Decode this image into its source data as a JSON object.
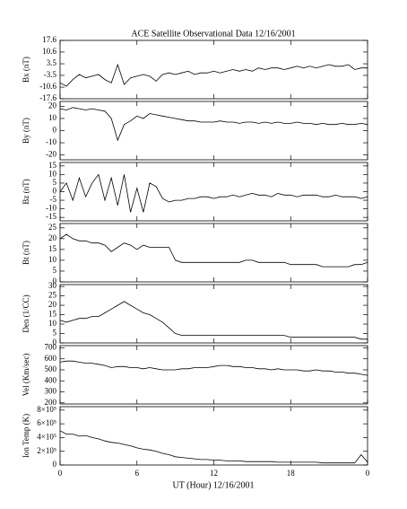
{
  "title": "ACE Satellite Observational Data   12/16/2001",
  "xlabel": "UT (Hour)  12/16/2001",
  "xlim": [
    0,
    24
  ],
  "xticks": [
    0,
    6,
    12,
    18,
    {
      "value": 24,
      "label": "0"
    }
  ],
  "chart_data": [
    {
      "type": "line",
      "ylabel": "Bx (nT)",
      "color": "#000000",
      "x": [
        0,
        0.5,
        1,
        1.5,
        2,
        2.5,
        3,
        3.5,
        4,
        4.5,
        5,
        5.5,
        6,
        6.5,
        7,
        7.5,
        8,
        8.5,
        9,
        9.5,
        10,
        10.5,
        11,
        11.5,
        12,
        12.5,
        13,
        13.5,
        14,
        14.5,
        15,
        15.5,
        16,
        16.5,
        17,
        17.5,
        18,
        18.5,
        19,
        19.5,
        20,
        20.5,
        21,
        21.5,
        22,
        22.5,
        23,
        23.5,
        24
      ],
      "values": [
        -8,
        -10,
        -6,
        -3,
        -5,
        -4,
        -3,
        -6,
        -8,
        3,
        -9,
        -5,
        -4,
        -3,
        -4,
        -7,
        -3,
        -2,
        -3,
        -2,
        -1,
        -3,
        -2,
        -2,
        -1,
        -2,
        -1,
        0,
        -1,
        0,
        -1,
        1,
        0,
        1,
        1,
        0,
        1,
        2,
        1,
        2,
        1,
        2,
        3,
        2,
        2,
        3,
        0,
        1,
        1
      ],
      "ylim": [
        -17.6,
        17.6
      ],
      "yticks": [
        17.6,
        10.6,
        3.5,
        -3.5,
        -10.6,
        -17.6
      ]
    },
    {
      "type": "line",
      "ylabel": "By (nT)",
      "color": "#000000",
      "x": [
        0,
        0.5,
        1,
        1.5,
        2,
        2.5,
        3,
        3.5,
        4,
        4.5,
        5,
        5.5,
        6,
        6.5,
        7,
        7.5,
        8,
        8.5,
        9,
        9.5,
        10,
        10.5,
        11,
        11.5,
        12,
        12.5,
        13,
        13.5,
        14,
        14.5,
        15,
        15.5,
        16,
        16.5,
        17,
        17.5,
        18,
        18.5,
        19,
        19.5,
        20,
        20.5,
        21,
        21.5,
        22,
        22.5,
        23,
        23.5,
        24
      ],
      "values": [
        18,
        17,
        19,
        18,
        17,
        18,
        17,
        16,
        10,
        -8,
        5,
        8,
        12,
        10,
        14,
        13,
        12,
        11,
        10,
        9,
        8,
        8,
        7,
        7,
        7,
        8,
        7,
        7,
        6,
        7,
        7,
        6,
        7,
        6,
        7,
        6,
        6,
        7,
        6,
        6,
        5,
        6,
        5,
        5,
        6,
        5,
        5,
        6,
        5
      ],
      "ylim": [
        -24,
        24
      ],
      "yticks": [
        20,
        10,
        0,
        -10,
        -20
      ]
    },
    {
      "type": "line",
      "ylabel": "Bz (nT)",
      "color": "#000000",
      "x": [
        0,
        0.5,
        1,
        1.5,
        2,
        2.5,
        3,
        3.5,
        4,
        4.5,
        5,
        5.5,
        6,
        6.5,
        7,
        7.5,
        8,
        8.5,
        9,
        9.5,
        10,
        10.5,
        11,
        11.5,
        12,
        12.5,
        13,
        13.5,
        14,
        14.5,
        15,
        15.5,
        16,
        16.5,
        17,
        17.5,
        18,
        18.5,
        19,
        19.5,
        20,
        20.5,
        21,
        21.5,
        22,
        22.5,
        23,
        23.5,
        24
      ],
      "values": [
        0,
        5,
        -5,
        8,
        -3,
        5,
        10,
        -5,
        8,
        -8,
        10,
        -12,
        2,
        -12,
        5,
        3,
        -4,
        -6,
        -5,
        -5,
        -4,
        -4,
        -3,
        -3,
        -4,
        -3,
        -3,
        -2,
        -3,
        -2,
        -1,
        -2,
        -2,
        -3,
        -1,
        -2,
        -2,
        -3,
        -2,
        -2,
        -2,
        -3,
        -3,
        -2,
        -3,
        -3,
        -3,
        -4,
        -3
      ],
      "ylim": [
        -17,
        17
      ],
      "yticks": [
        15,
        10,
        5,
        0,
        -5,
        -10,
        -15
      ]
    },
    {
      "type": "line",
      "ylabel": "Bt (nT)",
      "color": "#000000",
      "x": [
        0,
        0.5,
        1,
        1.5,
        2,
        2.5,
        3,
        3.5,
        4,
        4.5,
        5,
        5.5,
        6,
        6.5,
        7,
        7.5,
        8,
        8.5,
        9,
        9.5,
        10,
        10.5,
        11,
        11.5,
        12,
        12.5,
        13,
        13.5,
        14,
        14.5,
        15,
        15.5,
        16,
        16.5,
        17,
        17.5,
        18,
        18.5,
        19,
        19.5,
        20,
        20.5,
        21,
        21.5,
        22,
        22.5,
        23,
        23.5,
        24
      ],
      "values": [
        20,
        22,
        20,
        19,
        19,
        18,
        18,
        17,
        14,
        16,
        18,
        17,
        15,
        17,
        16,
        16,
        16,
        16,
        10,
        9,
        9,
        9,
        9,
        9,
        9,
        9,
        9,
        9,
        9,
        10,
        10,
        9,
        9,
        9,
        9,
        9,
        8,
        8,
        8,
        8,
        8,
        7,
        7,
        7,
        7,
        7,
        8,
        8,
        9
      ],
      "ylim": [
        0,
        27
      ],
      "yticks": [
        25,
        20,
        15,
        10,
        5,
        0
      ]
    },
    {
      "type": "line",
      "ylabel": "Den (1/CC)",
      "color": "#000000",
      "x": [
        0,
        0.5,
        1,
        1.5,
        2,
        2.5,
        3,
        3.5,
        4,
        4.5,
        5,
        5.5,
        6,
        6.5,
        7,
        7.5,
        8,
        8.5,
        9,
        9.5,
        10,
        10.5,
        11,
        11.5,
        12,
        12.5,
        13,
        13.5,
        14,
        14.5,
        15,
        15.5,
        16,
        16.5,
        17,
        17.5,
        18,
        18.5,
        19,
        19.5,
        20,
        20.5,
        21,
        21.5,
        22,
        22.5,
        23,
        23.5,
        24
      ],
      "values": [
        12,
        11,
        12,
        13,
        13,
        14,
        14,
        16,
        18,
        20,
        22,
        20,
        18,
        16,
        15,
        13,
        11,
        8,
        5,
        4,
        4,
        4,
        4,
        4,
        4,
        4,
        4,
        4,
        4,
        4,
        4,
        4,
        4,
        4,
        4,
        4,
        3,
        3,
        3,
        3,
        3,
        3,
        3,
        3,
        3,
        3,
        3,
        2,
        2
      ],
      "ylim": [
        0,
        31
      ],
      "yticks": [
        30,
        25,
        20,
        15,
        10,
        5,
        0
      ]
    },
    {
      "type": "line",
      "ylabel": "Vel (Km/sec)",
      "color": "#000000",
      "x": [
        0,
        0.5,
        1,
        1.5,
        2,
        2.5,
        3,
        3.5,
        4,
        4.5,
        5,
        5.5,
        6,
        6.5,
        7,
        7.5,
        8,
        8.5,
        9,
        9.5,
        10,
        10.5,
        11,
        11.5,
        12,
        12.5,
        13,
        13.5,
        14,
        14.5,
        15,
        15.5,
        16,
        16.5,
        17,
        17.5,
        18,
        18.5,
        19,
        19.5,
        20,
        20.5,
        21,
        21.5,
        22,
        22.5,
        23,
        23.5,
        24
      ],
      "values": [
        570,
        580,
        580,
        570,
        560,
        560,
        550,
        540,
        520,
        530,
        530,
        520,
        520,
        510,
        520,
        510,
        500,
        500,
        500,
        510,
        510,
        520,
        520,
        520,
        530,
        540,
        540,
        530,
        530,
        520,
        520,
        510,
        510,
        500,
        510,
        500,
        500,
        500,
        490,
        490,
        500,
        490,
        490,
        480,
        480,
        470,
        470,
        460,
        450
      ],
      "ylim": [
        190,
        720
      ],
      "yticks": [
        700,
        600,
        500,
        400,
        300,
        200
      ]
    },
    {
      "type": "line",
      "ylabel": "Ion Temp (K)",
      "color": "#000000",
      "x": [
        0,
        0.5,
        1,
        1.5,
        2,
        2.5,
        3,
        3.5,
        4,
        4.5,
        5,
        5.5,
        6,
        6.5,
        7,
        7.5,
        8,
        8.5,
        9,
        9.5,
        10,
        10.5,
        11,
        11.5,
        12,
        12.5,
        13,
        13.5,
        14,
        14.5,
        15,
        15.5,
        16,
        16.5,
        17,
        17.5,
        18,
        18.5,
        19,
        19.5,
        20,
        20.5,
        21,
        21.5,
        22,
        22.5,
        23,
        23.5,
        24
      ],
      "values": [
        500000,
        450000,
        450000,
        420000,
        430000,
        400000,
        380000,
        350000,
        330000,
        320000,
        300000,
        280000,
        250000,
        230000,
        220000,
        200000,
        170000,
        150000,
        120000,
        110000,
        100000,
        90000,
        80000,
        80000,
        70000,
        70000,
        60000,
        60000,
        60000,
        50000,
        50000,
        50000,
        50000,
        50000,
        40000,
        40000,
        40000,
        40000,
        40000,
        40000,
        40000,
        30000,
        30000,
        30000,
        30000,
        30000,
        30000,
        150000,
        40000
      ],
      "ylim": [
        0,
        850000
      ],
      "yticks": [
        {
          "value": 800000,
          "label": "8×10⁵"
        },
        {
          "value": 600000,
          "label": "6×10⁵"
        },
        {
          "value": 400000,
          "label": "4×10⁵"
        },
        {
          "value": 200000,
          "label": "2×10⁵"
        },
        0
      ]
    }
  ]
}
